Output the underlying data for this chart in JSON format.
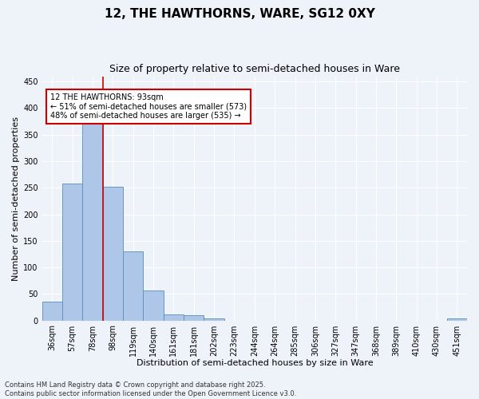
{
  "title1": "12, THE HAWTHORNS, WARE, SG12 0XY",
  "title2": "Size of property relative to semi-detached houses in Ware",
  "xlabel": "Distribution of semi-detached houses by size in Ware",
  "ylabel": "Number of semi-detached properties",
  "categories": [
    "36sqm",
    "57sqm",
    "78sqm",
    "98sqm",
    "119sqm",
    "140sqm",
    "161sqm",
    "181sqm",
    "202sqm",
    "223sqm",
    "244sqm",
    "264sqm",
    "285sqm",
    "306sqm",
    "327sqm",
    "347sqm",
    "368sqm",
    "389sqm",
    "410sqm",
    "430sqm",
    "451sqm"
  ],
  "values": [
    35,
    258,
    374,
    252,
    130,
    57,
    12,
    10,
    4,
    0,
    0,
    0,
    0,
    0,
    0,
    0,
    0,
    0,
    0,
    0,
    4
  ],
  "bar_color": "#aec6e8",
  "bar_edge_color": "#5b8db8",
  "vline_color": "#cc0000",
  "annotation_text": "12 THE HAWTHORNS: 93sqm\n← 51% of semi-detached houses are smaller (573)\n48% of semi-detached houses are larger (535) →",
  "annotation_box_color": "#ffffff",
  "annotation_box_edge_color": "#cc0000",
  "property_bin_index": 2,
  "ylim": [
    0,
    460
  ],
  "yticks": [
    0,
    50,
    100,
    150,
    200,
    250,
    300,
    350,
    400,
    450
  ],
  "footnote": "Contains HM Land Registry data © Crown copyright and database right 2025.\nContains public sector information licensed under the Open Government Licence v3.0.",
  "background_color": "#eef2f9",
  "grid_color": "#ffffff",
  "title1_fontsize": 11,
  "title2_fontsize": 9,
  "xlabel_fontsize": 8,
  "ylabel_fontsize": 8,
  "tick_fontsize": 7,
  "annot_fontsize": 7,
  "footnote_fontsize": 6
}
